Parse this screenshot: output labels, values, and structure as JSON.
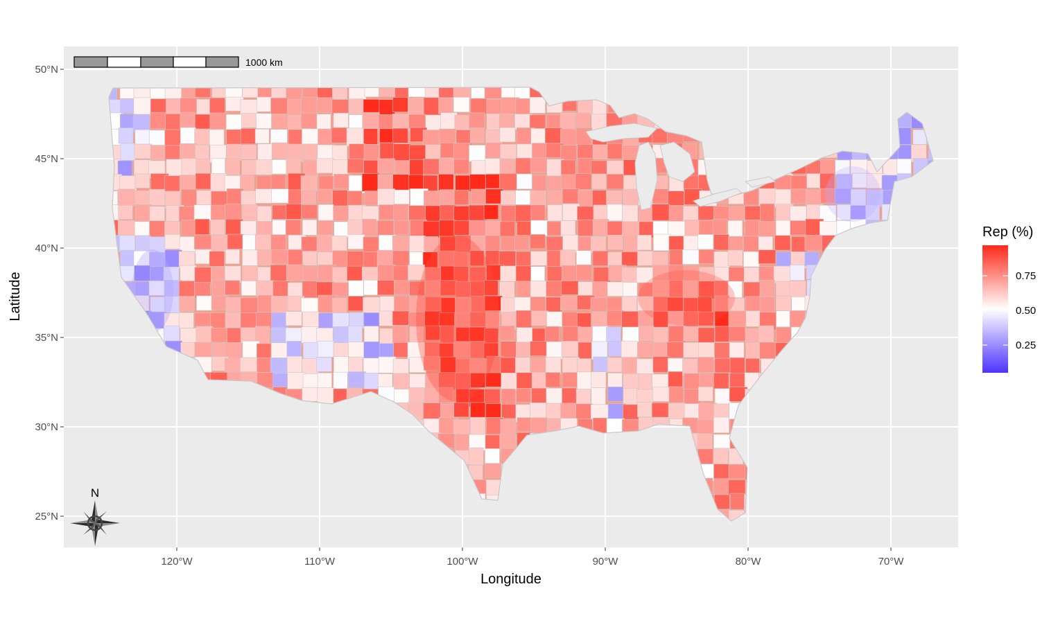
{
  "chart_data": {
    "type": "choropleth",
    "title": "",
    "xlabel": "Longitude",
    "ylabel": "Latitude",
    "xlim": [
      -128,
      -65
    ],
    "ylim": [
      23.5,
      51.3
    ],
    "x_ticks": [
      {
        "value": -120,
        "label": "120°W"
      },
      {
        "value": -110,
        "label": "110°W"
      },
      {
        "value": -100,
        "label": "100°W"
      },
      {
        "value": -90,
        "label": "90°W"
      },
      {
        "value": -80,
        "label": "80°W"
      },
      {
        "value": -70,
        "label": "70°W"
      }
    ],
    "y_ticks": [
      {
        "value": 25,
        "label": "25°N"
      },
      {
        "value": 30,
        "label": "30°N"
      },
      {
        "value": 35,
        "label": "35°N"
      },
      {
        "value": 40,
        "label": "40°N"
      },
      {
        "value": 45,
        "label": "45°N"
      },
      {
        "value": 50,
        "label": "50°N"
      }
    ],
    "grid": true,
    "legend": {
      "title": "Rep (%)",
      "placement": "right",
      "min": 0.05,
      "max": 0.97,
      "ticks": [
        {
          "value": 0.25,
          "label": "0.25"
        },
        {
          "value": 0.5,
          "label": "0.50"
        },
        {
          "value": 0.75,
          "label": "0.75"
        }
      ],
      "colors": {
        "low": "#4d33ff",
        "mid": "#ffffff",
        "high": "#ff2a1a"
      }
    },
    "scale_bar": {
      "label": "1000 km"
    },
    "north_arrow": {
      "label": "N"
    },
    "colors": {
      "panel": "#ebebeb",
      "grid": "#ffffff",
      "county_border": "#c8c8c8"
    }
  }
}
